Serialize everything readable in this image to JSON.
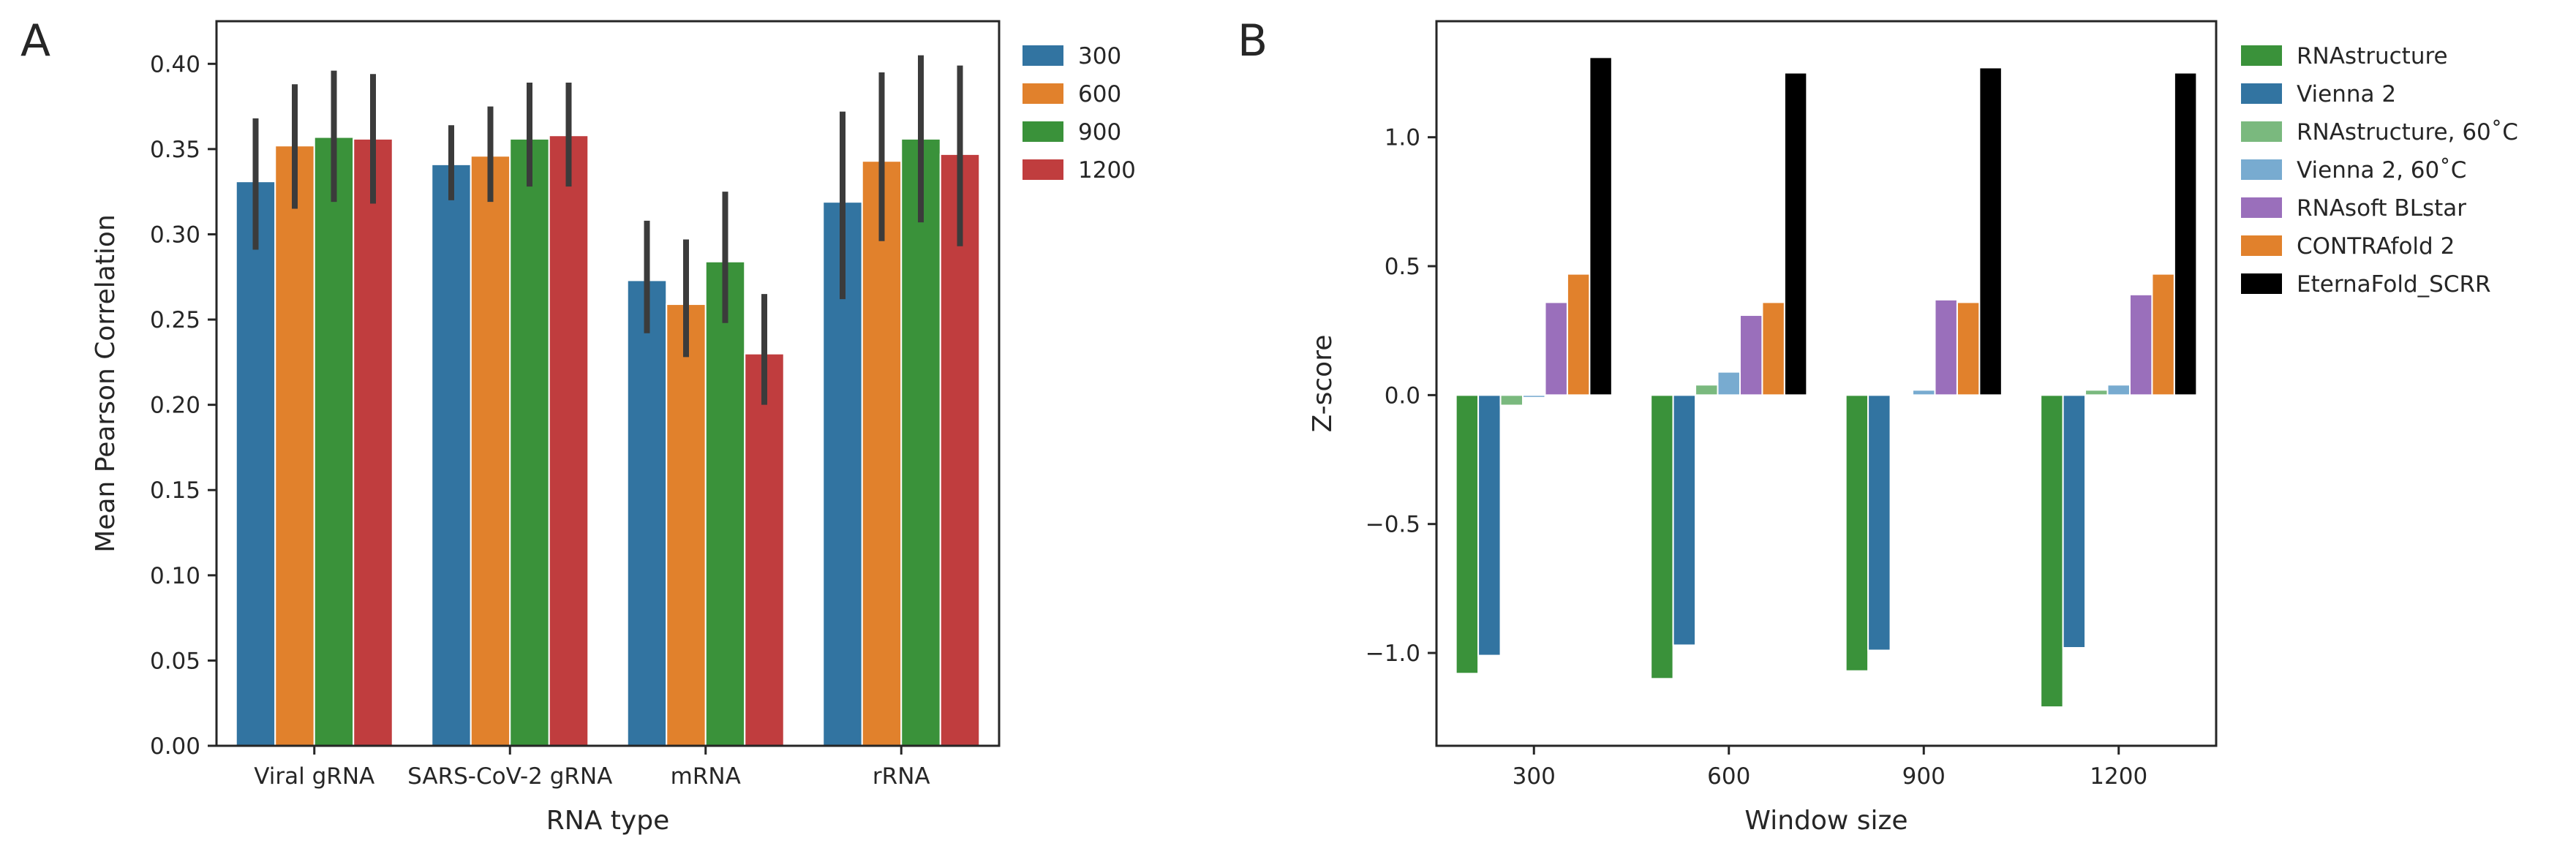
{
  "panels": {
    "A": {
      "letter": "A"
    },
    "B": {
      "letter": "B"
    }
  },
  "chart_data": [
    {
      "type": "bar",
      "panel": "A",
      "title": "",
      "xlabel": "RNA type",
      "ylabel": "Mean Pearson Correlation",
      "ylim": [
        0,
        0.425
      ],
      "yticks": [
        "0.00",
        "0.05",
        "0.10",
        "0.15",
        "0.20",
        "0.25",
        "0.30",
        "0.35",
        "0.40"
      ],
      "categories": [
        "Viral gRNA",
        "SARS-CoV-2 gRNA",
        "mRNA",
        "rRNA"
      ],
      "legend": {
        "placement": "outside-right",
        "entries": [
          "300",
          "600",
          "900",
          "1200"
        ]
      },
      "error_bars": true,
      "grid": false,
      "series": [
        {
          "name": "300",
          "color": "#3274a1",
          "values": [
            0.331,
            0.341,
            0.273,
            0.319
          ],
          "err_low": [
            0.291,
            0.32,
            0.242,
            0.262
          ],
          "err_high": [
            0.368,
            0.364,
            0.308,
            0.372
          ]
        },
        {
          "name": "600",
          "color": "#e1812c",
          "values": [
            0.352,
            0.346,
            0.259,
            0.343
          ],
          "err_low": [
            0.315,
            0.319,
            0.228,
            0.296
          ],
          "err_high": [
            0.388,
            0.375,
            0.297,
            0.395
          ]
        },
        {
          "name": "900",
          "color": "#3a923a",
          "values": [
            0.357,
            0.356,
            0.284,
            0.356
          ],
          "err_low": [
            0.319,
            0.328,
            0.248,
            0.307
          ],
          "err_high": [
            0.396,
            0.389,
            0.325,
            0.405
          ]
        },
        {
          "name": "1200",
          "color": "#c03d3e",
          "values": [
            0.356,
            0.358,
            0.23,
            0.347
          ],
          "err_low": [
            0.318,
            0.328,
            0.2,
            0.293
          ],
          "err_high": [
            0.394,
            0.389,
            0.265,
            0.399
          ]
        }
      ]
    },
    {
      "type": "bar",
      "panel": "B",
      "title": "",
      "xlabel": "Window size",
      "ylabel": "Z-score",
      "ylim": [
        -1.36,
        1.45
      ],
      "yticks": [
        "−1.0",
        "−0.5",
        "0.0",
        "0.5",
        "1.0"
      ],
      "yticks_values": [
        -1.0,
        -0.5,
        0.0,
        0.5,
        1.0
      ],
      "categories": [
        "300",
        "600",
        "900",
        "1200"
      ],
      "legend": {
        "placement": "outside-right",
        "entries": [
          "RNAstructure",
          "Vienna 2",
          "RNAstructure, 60˚C",
          "Vienna 2, 60˚C",
          "RNAsoft BLstar",
          "CONTRAfold 2",
          "EternaFold_SCRR"
        ]
      },
      "grid": false,
      "series": [
        {
          "name": "RNAstructure",
          "color": "#3a923a",
          "values": [
            -1.08,
            -1.1,
            -1.07,
            -1.21
          ]
        },
        {
          "name": "Vienna 2",
          "color": "#3274a1",
          "values": [
            -1.01,
            -0.97,
            -0.99,
            -0.98
          ]
        },
        {
          "name": "RNAstructure, 60˚C",
          "color": "#7ab97e",
          "values": [
            -0.04,
            0.04,
            0.0,
            0.02
          ]
        },
        {
          "name": "Vienna 2, 60˚C",
          "color": "#78abd0",
          "values": [
            -0.01,
            0.09,
            0.02,
            0.04
          ]
        },
        {
          "name": "RNAsoft BLstar",
          "color": "#9a6fbb",
          "values": [
            0.36,
            0.31,
            0.37,
            0.39
          ]
        },
        {
          "name": "CONTRAfold 2",
          "color": "#e1812c",
          "values": [
            0.47,
            0.36,
            0.36,
            0.47
          ]
        },
        {
          "name": "EternaFold_SCRR",
          "color": "#000000",
          "values": [
            1.31,
            1.25,
            1.27,
            1.25
          ]
        }
      ]
    }
  ]
}
